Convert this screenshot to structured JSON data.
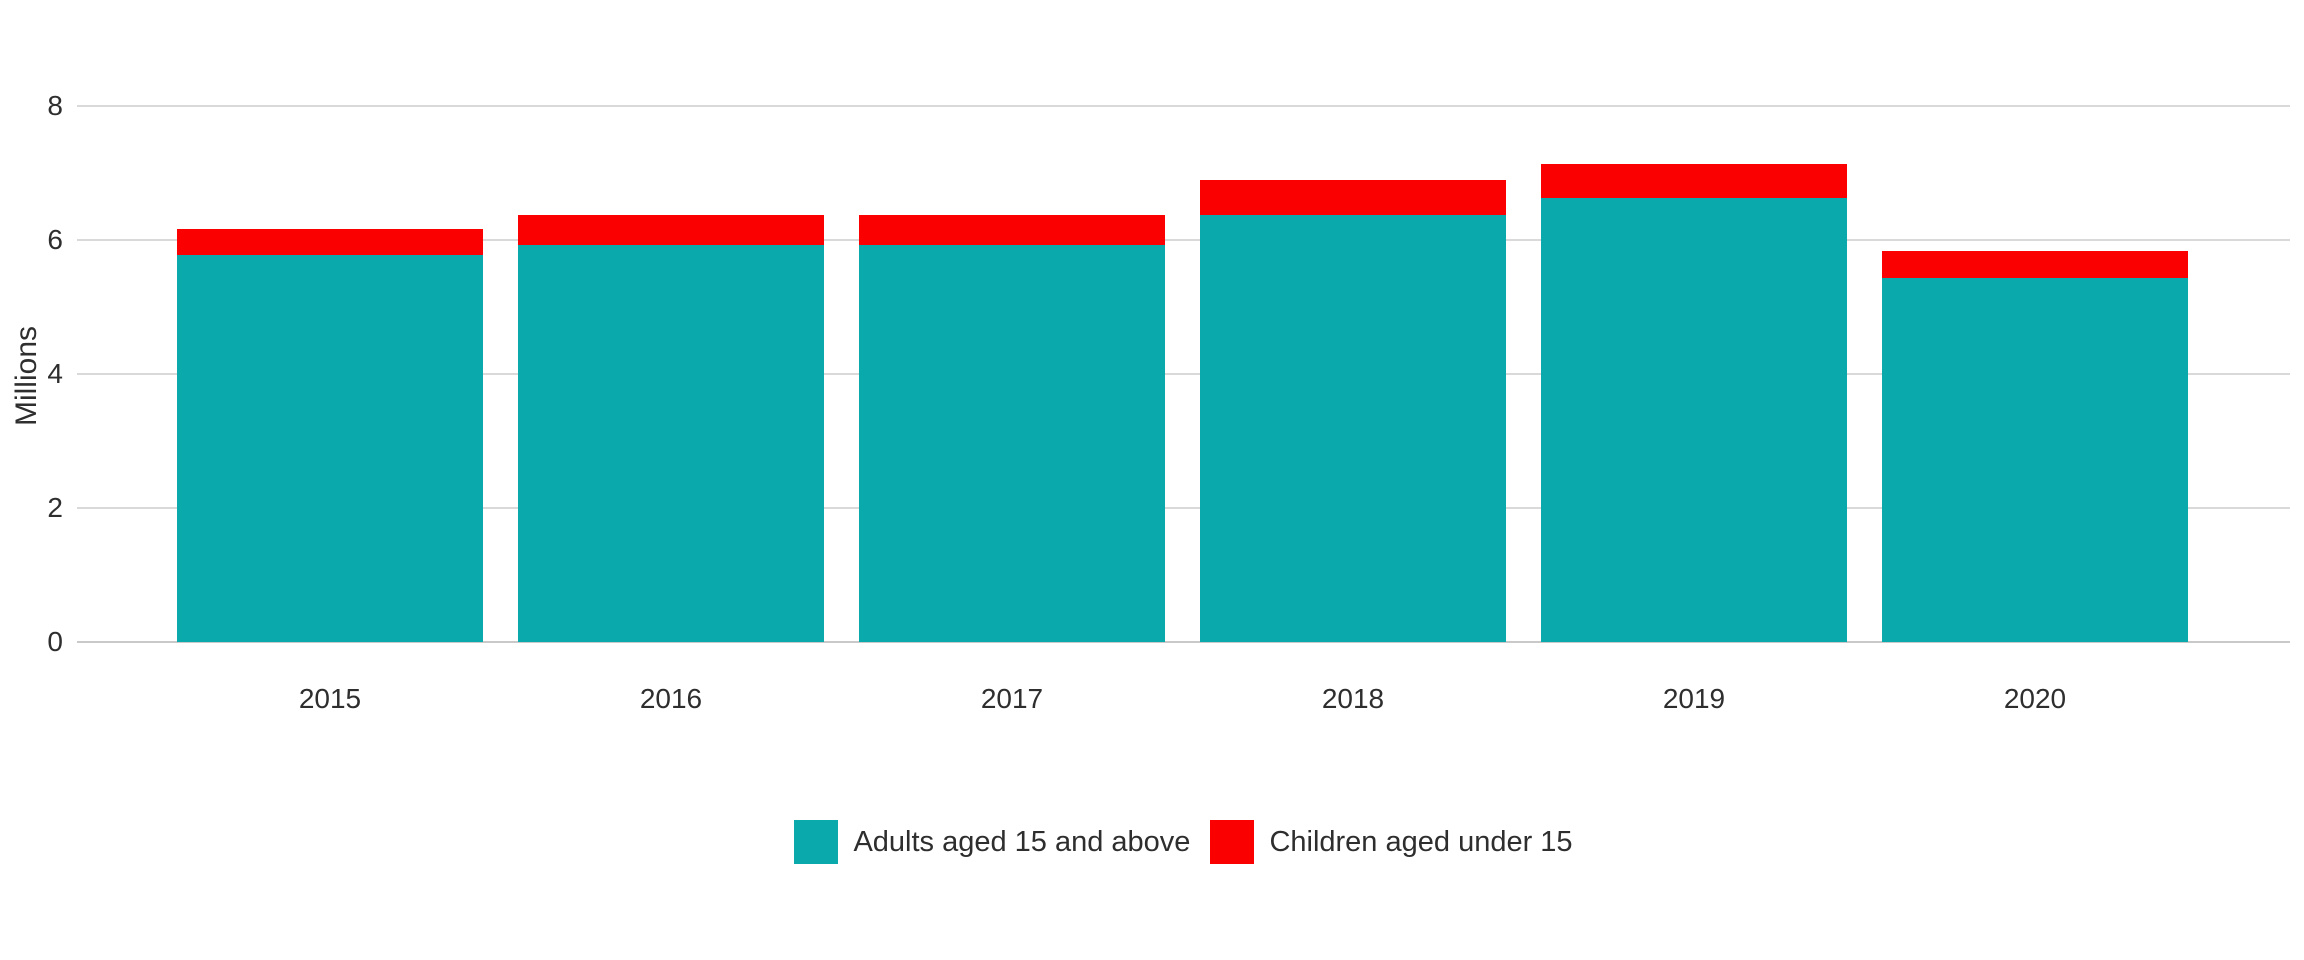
{
  "chart_data": {
    "type": "bar",
    "stacked": true,
    "title": "",
    "categories": [
      "2015",
      "2016",
      "2017",
      "2018",
      "2019",
      "2020"
    ],
    "series": [
      {
        "name": "Adults aged 15 and above",
        "color": "#0aa9ab",
        "values": [
          5.78,
          5.92,
          5.92,
          6.38,
          6.62,
          5.44
        ]
      },
      {
        "name": "Children aged under 15",
        "color": "#fb0000",
        "values": [
          0.39,
          0.45,
          0.45,
          0.51,
          0.52,
          0.4
        ]
      }
    ],
    "totals": [
      6.17,
      6.37,
      6.37,
      6.89,
      7.14,
      5.84
    ],
    "xlabel": "",
    "ylabel": "Millions",
    "ylim": [
      0,
      8
    ],
    "yticks": [
      0,
      2,
      4,
      6,
      8
    ],
    "grid": true,
    "legend_position": "bottom-center",
    "colors": {
      "gridline": "#d9d9d9",
      "axis_line": "#c9c9c9",
      "text": "#2e2e2e",
      "background": "#ffffff"
    }
  }
}
